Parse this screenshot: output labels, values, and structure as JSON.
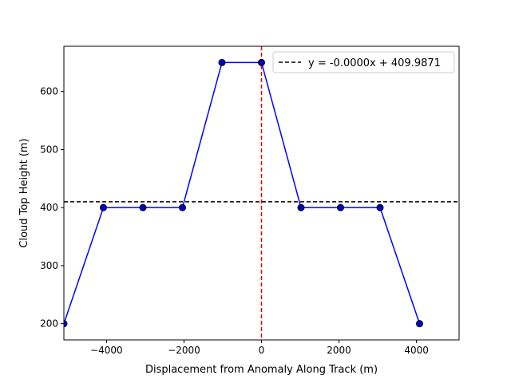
{
  "chart_data": {
    "type": "line",
    "title": "",
    "xlabel": "Displacement from Anomaly Along Track (m)",
    "ylabel": "Cloud Top Height (m)",
    "xlim": [
      -5100,
      5100
    ],
    "ylim": [
      172,
      678
    ],
    "xticks": [
      -4000,
      -2000,
      0,
      2000,
      4000
    ],
    "xtick_labels": [
      "−4000",
      "−2000",
      "0",
      "2000",
      "4000"
    ],
    "yticks": [
      200,
      300,
      400,
      500,
      600
    ],
    "ytick_labels": [
      "200",
      "300",
      "400",
      "500",
      "600"
    ],
    "grid": false,
    "legend_position": "top-right",
    "series": [
      {
        "color": "#0000ff",
        "marker_fill": "#0000cc",
        "x": [
          -5100,
          -4080,
          -3060,
          -2040,
          -1020,
          0,
          1020,
          2040,
          3060,
          4080
        ],
        "y": [
          200,
          400,
          400,
          400,
          650,
          650,
          400,
          400,
          400,
          200
        ]
      }
    ],
    "fit_line": {
      "name": "y = -0.0000x + 409.9871",
      "slope": 0.0,
      "intercept": 409.9871,
      "color": "#000000",
      "style": "dashed"
    },
    "anomaly_line": {
      "x": 0,
      "color": "#dd0000",
      "style": "dashed"
    }
  }
}
